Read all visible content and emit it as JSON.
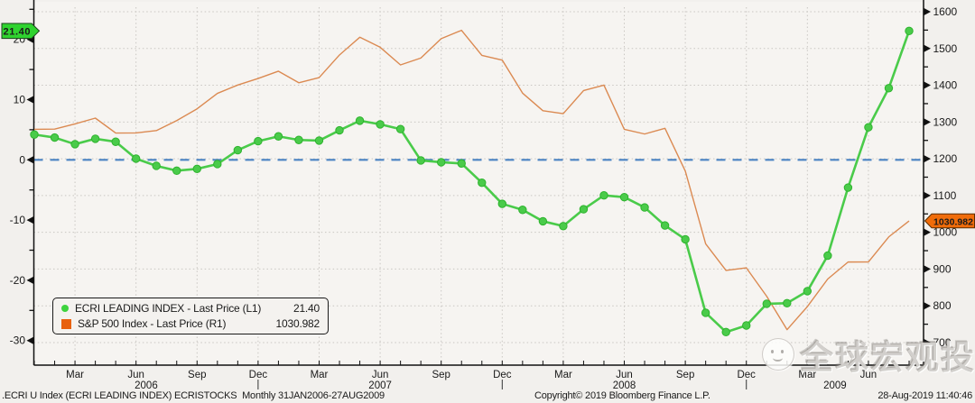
{
  "badges": {
    "left": {
      "value": "21.40",
      "bg": "#2fd32f"
    },
    "right": {
      "value": "1030.982",
      "bg": "#f06c0a"
    }
  },
  "legend": {
    "items": [
      {
        "label": "ECRI LEADING INDEX - Last Price (L1)",
        "value": "21.40",
        "color": "#3ed33e",
        "marker": "circle"
      },
      {
        "label": "S&P 500 Index - Last Price (R1)",
        "value": "1030.982",
        "color": "#e8610f",
        "marker": "square"
      }
    ]
  },
  "footer": {
    "left": ".ECRI U Index (ECRI LEADING INDEX) ECRISTOCKS  Monthly 31JAN2006-27AUG2009",
    "center": "Copyright© 2019 Bloomberg Finance L.P.",
    "right": "28-Aug-2019 11:40:46"
  },
  "watermark": {
    "text": "全球宏观投机",
    "logo": "smiley-face-logo"
  },
  "chart_data": {
    "type": "line",
    "frequency": "Monthly",
    "period": "31JAN2006-27AUG2009",
    "plot_bg": "#f6f4f1",
    "grid": {
      "color": "#c9c6c2",
      "style": "dotted",
      "on": true
    },
    "zero_line": {
      "axis": "left",
      "value": 0,
      "style": "dashed",
      "color": "#4b83c3"
    },
    "x_axis": {
      "tick_indices": [
        2,
        5,
        8,
        11,
        14,
        17,
        20,
        23,
        26,
        29,
        32,
        35,
        38,
        41
      ],
      "tick_labels": [
        "Mar",
        "Jun",
        "Sep",
        "Dec",
        "Mar",
        "Jun",
        "Sep",
        "Dec",
        "Mar",
        "Jun",
        "Sep",
        "Dec",
        "Mar",
        "Jun"
      ],
      "years": [
        {
          "label": "2006",
          "start": 0,
          "end": 11
        },
        {
          "label": "2007",
          "start": 11,
          "end": 23
        },
        {
          "label": "2008",
          "start": 23,
          "end": 35
        },
        {
          "label": "2009",
          "start": 35,
          "end": null
        }
      ]
    },
    "left_axis": {
      "title": "ECRI LEADING INDEX",
      "major_ticks": [
        20,
        10,
        0,
        -10,
        -20,
        -30
      ],
      "minor_ticks": [
        25,
        15,
        5,
        -5,
        -15,
        -25
      ],
      "last_value_flag": 21.4
    },
    "right_axis": {
      "title": "S&P 500 Index",
      "major_ticks": [
        1600,
        1500,
        1400,
        1300,
        1200,
        1100,
        1000,
        900,
        800,
        700
      ],
      "minor_step": 50,
      "last_value_flag": 1030.982
    },
    "series": [
      {
        "name": "ECRI LEADING INDEX - Last Price (L1)",
        "axis": "left",
        "color": "#4acb4a",
        "marker": "circle",
        "marker_edge": "#2db32d",
        "values": [
          4.2,
          3.7,
          2.6,
          3.5,
          3.0,
          0.2,
          -1.0,
          -1.8,
          -1.5,
          -0.7,
          1.6,
          3.1,
          3.9,
          3.3,
          3.2,
          4.9,
          6.5,
          5.9,
          5.1,
          -0.1,
          -0.4,
          -0.6,
          -3.8,
          -7.3,
          -8.3,
          -10.2,
          -11.0,
          -8.2,
          -5.9,
          -6.2,
          -7.9,
          -10.9,
          -13.2,
          -25.4,
          -28.6,
          -27.5,
          -23.9,
          -23.8,
          -21.8,
          -15.9,
          -4.6,
          5.4,
          11.9,
          21.4
        ]
      },
      {
        "name": "S&P 500 Index - Last Price (R1)",
        "axis": "right",
        "color": "#db8a52",
        "marker": "none",
        "marker_edge": "none",
        "values": [
          1280.08,
          1280.66,
          1294.87,
          1310.61,
          1270.09,
          1270.2,
          1276.66,
          1303.82,
          1335.85,
          1377.94,
          1400.63,
          1418.3,
          1438.24,
          1406.82,
          1420.86,
          1482.37,
          1530.62,
          1503.35,
          1455.27,
          1473.99,
          1526.75,
          1549.38,
          1481.14,
          1468.36,
          1378.55,
          1330.63,
          1322.7,
          1385.59,
          1400.38,
          1280.0,
          1267.38,
          1282.83,
          1166.36,
          968.75,
          896.24,
          903.25,
          825.88,
          735.09,
          797.87,
          872.81,
          919.14,
          919.32,
          987.48,
          1030.982
        ]
      }
    ]
  }
}
